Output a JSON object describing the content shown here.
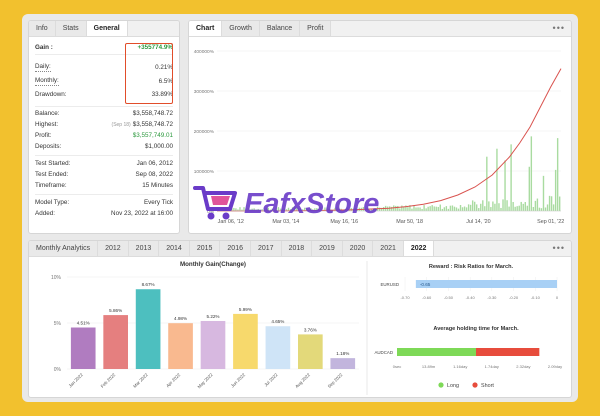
{
  "stats_panel": {
    "tabs": [
      {
        "label": "Info",
        "active": false
      },
      {
        "label": "Stats",
        "active": false
      },
      {
        "label": "General",
        "active": true
      }
    ],
    "gain": {
      "label": "Gain :",
      "value": "+355774.9%"
    },
    "daily": {
      "label": "Daily:",
      "value": "0.21%"
    },
    "monthly": {
      "label": "Monthly:",
      "value": "6.5%"
    },
    "drawdown": {
      "label": "Drawdown:",
      "value": "33.89%"
    },
    "balance": {
      "label": "Balance:",
      "value": "$3,558,748.72"
    },
    "highest": {
      "label": "Highest:",
      "hint": "(Sep 18)",
      "value": "$3,558,748.72"
    },
    "profit": {
      "label": "Profit:",
      "value": "$3,557,749.01"
    },
    "deposits": {
      "label": "Deposits:",
      "value": "$1,000.00"
    },
    "test_started": {
      "label": "Test Started:",
      "value": "Jan 06, 2012"
    },
    "test_ended": {
      "label": "Test Ended:",
      "value": "Sep 08, 2022"
    },
    "timeframe": {
      "label": "Timeframe:",
      "value": "15 Minutes"
    },
    "model_type": {
      "label": "Model Type:",
      "value": "Every Tick"
    },
    "added": {
      "label": "Added:",
      "value": "Nov 23, 2022 at 16:00"
    }
  },
  "chart_panel": {
    "tabs": [
      {
        "label": "Chart",
        "active": true
      },
      {
        "label": "Growth",
        "active": false
      },
      {
        "label": "Balance",
        "active": false
      },
      {
        "label": "Profit",
        "active": false
      }
    ],
    "menu": "•••"
  },
  "monthly_panel": {
    "tabs": [
      {
        "label": "Monthly Analytics",
        "active": false
      },
      {
        "label": "2012",
        "active": false
      },
      {
        "label": "2013",
        "active": false
      },
      {
        "label": "2014",
        "active": false
      },
      {
        "label": "2015",
        "active": false
      },
      {
        "label": "2016",
        "active": false
      },
      {
        "label": "2017",
        "active": false
      },
      {
        "label": "2018",
        "active": false
      },
      {
        "label": "2019",
        "active": false
      },
      {
        "label": "2020",
        "active": false
      },
      {
        "label": "2021",
        "active": false
      },
      {
        "label": "2022",
        "active": true
      }
    ],
    "menu": "•••"
  },
  "watermark": {
    "text": "EafxStore"
  },
  "chart_data": [
    {
      "type": "line",
      "ylim": [
        0,
        400000
      ],
      "yticks": [
        0,
        100000,
        200000,
        300000,
        400000
      ],
      "ytick_labels": [
        "0%",
        "100000%",
        "200000%",
        "300000%",
        "400000%"
      ],
      "xtick_labels": [
        "Jan 06, '12",
        "Mar 03, '14",
        "May 16, '16",
        "Mar 50, '18",
        "Jul 14, '20",
        "Sep 01, '22"
      ],
      "x": [
        0,
        0.1,
        0.2,
        0.3,
        0.4,
        0.5,
        0.55,
        0.6,
        0.65,
        0.7,
        0.75,
        0.8,
        0.85,
        0.88,
        0.91,
        0.94,
        0.97,
        1.0
      ],
      "series": [
        {
          "values": [
            0,
            100,
            400,
            1200,
            3000,
            7000,
            11000,
            17000,
            26000,
            40000,
            60000,
            90000,
            135000,
            170000,
            210000,
            260000,
            310000,
            356000
          ],
          "color": "#d9534f"
        }
      ],
      "bars_color": "#a9dba0",
      "grid": true
    },
    {
      "type": "bar",
      "title": "Monthly Gain(Change)",
      "categories": [
        "Jan 2022",
        "Feb 2022",
        "Mar 2022",
        "Apr 2022",
        "May 2022",
        "Jun 2022",
        "Jul 2022",
        "Aug 2022",
        "Sep 2022"
      ],
      "values": [
        4.51,
        5.86,
        8.67,
        4.98,
        5.22,
        5.99,
        4.65,
        3.76,
        1.18
      ],
      "value_labels": [
        "4.51%",
        "5.86%",
        "8.67%",
        "4.98%",
        "5.22%",
        "5.99%",
        "4.65%",
        "3.76%",
        "1.18%"
      ],
      "colors": [
        "#b07cc0",
        "#e57f7f",
        "#4dbfbf",
        "#f9b98f",
        "#d7b8e0",
        "#f7d96c",
        "#cfe4f7",
        "#e3d97a",
        "#c2b5dd"
      ],
      "yticks": [
        0,
        5,
        10
      ],
      "ytick_labels": [
        "0%",
        "5%",
        "10%"
      ],
      "ylim": [
        0,
        10
      ]
    },
    {
      "type": "bar",
      "title": "Reward : Risk Ratios for March.",
      "categories": [
        "EURUSD"
      ],
      "values": [
        -0.65
      ],
      "value_labels": [
        "-0.65"
      ],
      "xlim": [
        -0.7,
        0
      ],
      "xticks": [
        -0.7,
        -0.6,
        -0.5,
        -0.4,
        -0.3,
        -0.2,
        -0.1,
        0
      ],
      "xtick_labels": [
        "-0.70",
        "-0.60",
        "-0.50",
        "-0.40",
        "-0.30",
        "-0.20",
        "-0.10",
        "0"
      ],
      "color": "#a8d0f5"
    },
    {
      "type": "bar",
      "title": "Average holding time for March.",
      "categories": [
        "AUDCAD"
      ],
      "series": [
        {
          "name": "Long",
          "value": 1.16,
          "color": "#7ed957"
        },
        {
          "name": "Short",
          "value": 2.09,
          "color": "#e74c3c"
        }
      ],
      "xtick_labels": [
        "0sec",
        "13.89m",
        "1.16day",
        "1.74day",
        "2.32day",
        "2.09day"
      ]
    }
  ]
}
